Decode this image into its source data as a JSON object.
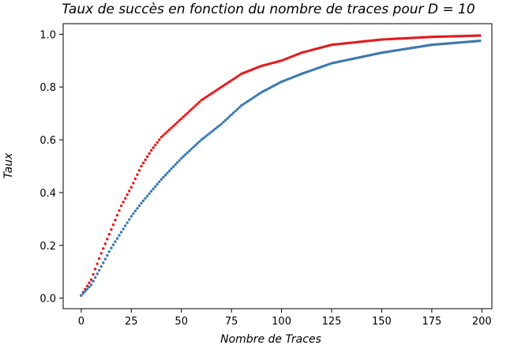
{
  "chart_data": {
    "type": "scatter",
    "title": "Taux de succès en fonction du nombre de traces pour D = 10",
    "xlabel": "Nombre de Traces",
    "ylabel": "Taux",
    "xlim": [
      -9,
      205
    ],
    "ylim": [
      -0.04,
      1.04
    ],
    "xticks": [
      0,
      25,
      50,
      75,
      100,
      125,
      150,
      175,
      200
    ],
    "yticks": [
      0.0,
      0.2,
      0.4,
      0.6,
      0.8,
      1.0
    ],
    "grid": false,
    "legend": "none",
    "x_range": [
      0,
      199
    ],
    "series": [
      {
        "color": "#e41a1c",
        "anchors_x": [
          0,
          5,
          10,
          15,
          20,
          25,
          30,
          35,
          40,
          50,
          60,
          70,
          80,
          90,
          100,
          110,
          125,
          150,
          175,
          199
        ],
        "anchors_y": [
          0.01,
          0.07,
          0.17,
          0.26,
          0.35,
          0.42,
          0.5,
          0.56,
          0.61,
          0.68,
          0.75,
          0.8,
          0.85,
          0.88,
          0.9,
          0.93,
          0.96,
          0.98,
          0.99,
          0.995
        ]
      },
      {
        "color": "#3a78b0",
        "anchors_x": [
          0,
          5,
          10,
          15,
          20,
          25,
          30,
          40,
          50,
          60,
          70,
          80,
          90,
          100,
          110,
          125,
          150,
          175,
          199
        ],
        "anchors_y": [
          0.01,
          0.05,
          0.12,
          0.19,
          0.25,
          0.31,
          0.36,
          0.45,
          0.53,
          0.6,
          0.66,
          0.73,
          0.78,
          0.82,
          0.85,
          0.89,
          0.93,
          0.96,
          0.975
        ]
      }
    ]
  }
}
